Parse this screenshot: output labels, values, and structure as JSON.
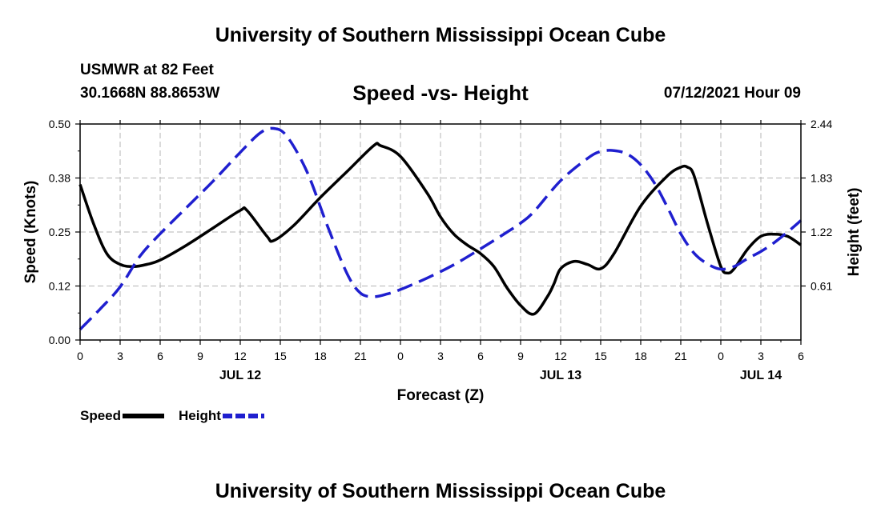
{
  "header": {
    "title": "University of Southern Mississippi Ocean Cube",
    "station": "USMWR at 82 Feet",
    "coords": "30.1668N  88.8653W",
    "chart_title": "Speed -vs- Height",
    "run_time": "07/12/2021 Hour 09"
  },
  "footer": {
    "title": "University of Southern Mississippi Ocean Cube"
  },
  "legend": {
    "speed_label": "Speed",
    "height_label": "Height"
  },
  "colors": {
    "speed": "#000000",
    "height": "#1f1fcf",
    "grid": "#b4b4b4"
  },
  "chart_data": {
    "type": "line",
    "title": "Speed -vs- Height",
    "xlabel": "Forecast (Z)",
    "ylabel": "Speed (Knots)",
    "y2label": "Height (feet)",
    "xlim": [
      0,
      54
    ],
    "ylim": [
      0,
      0.5
    ],
    "y2lim": [
      0,
      2.44
    ],
    "x_ticks": [
      0,
      3,
      6,
      9,
      12,
      15,
      18,
      21,
      24,
      27,
      30,
      33,
      36,
      39,
      42,
      45,
      48,
      51,
      54
    ],
    "x_tick_labels": [
      "0",
      "3",
      "6",
      "9",
      "12",
      "15",
      "18",
      "21",
      "0",
      "3",
      "6",
      "9",
      "12",
      "15",
      "18",
      "21",
      "0",
      "3",
      "6"
    ],
    "y_ticks": [
      0.0,
      0.125,
      0.25,
      0.375,
      0.5
    ],
    "y_tick_labels": [
      "0.00",
      "0.12",
      "0.25",
      "0.38",
      "0.50"
    ],
    "y2_ticks": [
      0.61,
      1.22,
      1.83,
      2.44
    ],
    "y2_tick_labels": [
      "0.61",
      "1.22",
      "1.83",
      "2.44"
    ],
    "date_labels": [
      {
        "x": 12,
        "label": "JUL 12"
      },
      {
        "x": 36,
        "label": "JUL 13"
      },
      {
        "x": 51,
        "label": "JUL 14"
      }
    ],
    "grid": true,
    "series": [
      {
        "name": "Speed",
        "axis": "left",
        "style": "solid",
        "x": [
          0,
          1,
          2,
          3,
          4,
          5,
          6,
          8,
          10,
          12,
          12.5,
          14,
          14.5,
          16,
          18,
          20,
          22,
          22.5,
          24,
          26,
          27,
          28,
          29,
          30,
          31,
          32,
          33,
          34,
          35,
          35.5,
          36,
          37,
          38,
          39,
          40,
          42,
          44,
          45,
          45.5,
          46,
          47,
          48,
          48.5,
          49,
          50,
          51,
          52,
          53,
          54
        ],
        "y": [
          0.36,
          0.27,
          0.2,
          0.175,
          0.17,
          0.175,
          0.185,
          0.22,
          0.26,
          0.3,
          0.3,
          0.24,
          0.23,
          0.265,
          0.33,
          0.39,
          0.45,
          0.45,
          0.425,
          0.34,
          0.285,
          0.245,
          0.22,
          0.2,
          0.17,
          0.12,
          0.08,
          0.06,
          0.1,
          0.13,
          0.165,
          0.182,
          0.175,
          0.165,
          0.2,
          0.31,
          0.38,
          0.4,
          0.4,
          0.38,
          0.27,
          0.17,
          0.155,
          0.165,
          0.21,
          0.24,
          0.245,
          0.24,
          0.22
        ]
      },
      {
        "name": "Height",
        "axis": "right",
        "style": "dashed",
        "x": [
          0,
          1.5,
          3,
          4.5,
          6,
          8,
          10,
          12,
          13.5,
          14.5,
          15.5,
          17,
          18.5,
          20,
          21,
          22,
          23,
          24,
          26,
          28,
          30,
          32,
          33,
          34,
          36,
          38,
          39,
          40,
          41,
          42,
          43,
          44,
          45,
          46,
          47,
          48,
          49,
          50,
          51,
          52,
          53,
          54
        ],
        "y": [
          0.12,
          0.35,
          0.6,
          0.95,
          1.2,
          1.5,
          1.8,
          2.12,
          2.34,
          2.39,
          2.3,
          1.9,
          1.3,
          0.75,
          0.53,
          0.49,
          0.52,
          0.57,
          0.7,
          0.85,
          1.03,
          1.22,
          1.32,
          1.45,
          1.8,
          2.05,
          2.13,
          2.14,
          2.1,
          1.98,
          1.78,
          1.5,
          1.2,
          0.98,
          0.86,
          0.8,
          0.83,
          0.92,
          1.0,
          1.1,
          1.22,
          1.35
        ]
      }
    ]
  }
}
